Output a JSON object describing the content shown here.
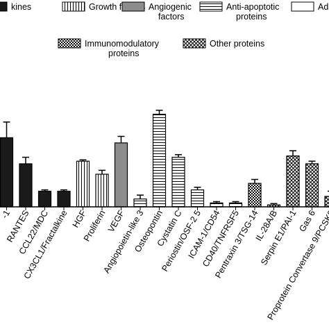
{
  "chart_data": {
    "type": "bar",
    "title": "",
    "xlabel": "",
    "ylabel": "",
    "ylim": [
      0,
      100
    ],
    "grid": false,
    "legend_position": "top",
    "legend": [
      {
        "name": "kines",
        "pattern": "solid-dark"
      },
      {
        "name": "Growth factors",
        "pattern": "vertical"
      },
      {
        "name": "Angiogenic factors",
        "pattern": "solid-gray"
      },
      {
        "name": "Anti-apoptotic proteins",
        "pattern": "horizontal"
      },
      {
        "name": "Adhe",
        "pattern": "white"
      },
      {
        "name": "Immunomodulatory proteins",
        "pattern": "checker"
      },
      {
        "name": "Other proteins",
        "pattern": "cross"
      }
    ],
    "categories": [
      "-1",
      "RANTES",
      "CCL22/MDC",
      "CX3CL1/Fractalkine",
      "HGF",
      "Proliferin",
      "VEGF",
      "Angiopoietin-like 3",
      "Osteopontin",
      "Cystatin C",
      "Periostin/OSF-2 5",
      "ICAM-1/CD54",
      "CD40/TNFRSF5",
      "Pentraxin 3/TSG-14",
      "IL-28A/B",
      "Serpin E1/PAI-1",
      "Gas 6",
      "Proprotein Convertase 9/PCSK9"
    ],
    "values": [
      53,
      33,
      12,
      12,
      35,
      25,
      49,
      6,
      71,
      38,
      13,
      3,
      3,
      18,
      1.5,
      39,
      33,
      8
    ],
    "errors": [
      12,
      5,
      1,
      1,
      1,
      3,
      5,
      3,
      3,
      2,
      2,
      1,
      1,
      3,
      1,
      4,
      2,
      4
    ],
    "patterns": [
      "solid-dark",
      "solid-dark",
      "solid-dark",
      "solid-dark",
      "vertical",
      "vertical",
      "solid-gray",
      "horizontal",
      "horizontal",
      "horizontal",
      "horizontal",
      "horizontal",
      "horizontal",
      "checker",
      "checker",
      "cross",
      "cross",
      "cross"
    ]
  }
}
